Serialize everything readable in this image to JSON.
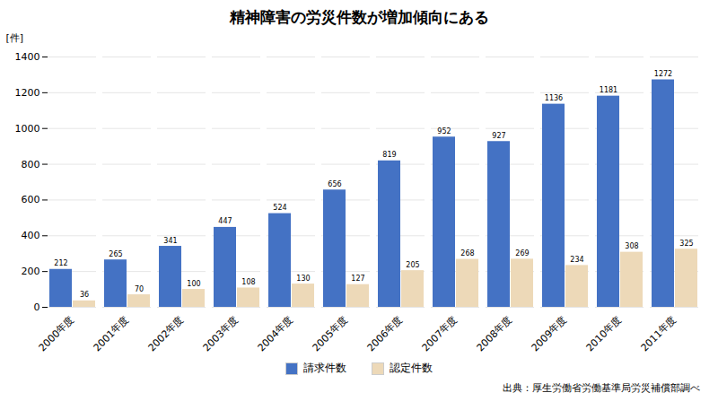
{
  "chart_data": {
    "type": "bar",
    "title": "精神障害の労災件数が増加傾向にある",
    "y_label": "[件]",
    "categories": [
      "2000年度",
      "2001年度",
      "2002年度",
      "2003年度",
      "2004年度",
      "2005年度",
      "2006年度",
      "2007年度",
      "2008年度",
      "2009年度",
      "2010年度",
      "2011年度"
    ],
    "series": [
      {
        "name": "請求件数",
        "color": "#4472C4",
        "values": [
          212,
          265,
          341,
          447,
          524,
          656,
          819,
          952,
          927,
          1136,
          1181,
          1272
        ]
      },
      {
        "name": "認定件数",
        "color": "#EDD9B8",
        "values": [
          36,
          70,
          100,
          108,
          130,
          127,
          205,
          268,
          269,
          234,
          308,
          325
        ]
      }
    ],
    "ylim": [
      0,
      1400
    ],
    "yticks": [
      0,
      200,
      400,
      600,
      800,
      1000,
      1200,
      1400
    ],
    "grid": true,
    "legend": "bottom",
    "data_labels": true,
    "annotations": [
      "出典：厚生労働省労働基準局労災補償部調べ"
    ]
  }
}
